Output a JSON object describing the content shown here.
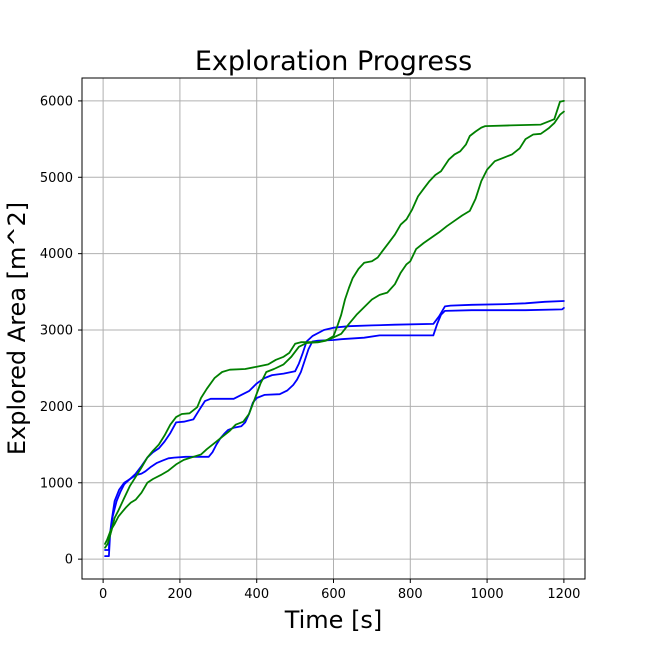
{
  "chart_data": {
    "type": "line",
    "title": "Exploration Progress",
    "xlabel": "Time [s]",
    "ylabel": "Explored Area [m^2]",
    "xlim": [
      -55,
      1255
    ],
    "ylim": [
      -260,
      6300
    ],
    "xticks": [
      0,
      200,
      400,
      600,
      800,
      1000,
      1200
    ],
    "yticks": [
      0,
      1000,
      2000,
      3000,
      4000,
      5000,
      6000
    ],
    "grid": true,
    "legend": "none",
    "series": [
      {
        "color": "#0000ff",
        "points": [
          [
            5,
            120
          ],
          [
            15,
            120
          ],
          [
            16,
            260
          ],
          [
            22,
            500
          ],
          [
            30,
            760
          ],
          [
            42,
            910
          ],
          [
            55,
            1000
          ],
          [
            70,
            1050
          ],
          [
            85,
            1100
          ],
          [
            100,
            1120
          ],
          [
            110,
            1150
          ],
          [
            125,
            1210
          ],
          [
            140,
            1260
          ],
          [
            155,
            1290
          ],
          [
            170,
            1320
          ],
          [
            185,
            1330
          ],
          [
            215,
            1340
          ],
          [
            260,
            1340
          ],
          [
            275,
            1340
          ],
          [
            285,
            1400
          ],
          [
            295,
            1500
          ],
          [
            305,
            1580
          ],
          [
            315,
            1640
          ],
          [
            325,
            1690
          ],
          [
            340,
            1720
          ],
          [
            360,
            1740
          ],
          [
            370,
            1790
          ],
          [
            380,
            1900
          ],
          [
            390,
            2050
          ],
          [
            400,
            2110
          ],
          [
            420,
            2150
          ],
          [
            460,
            2160
          ],
          [
            480,
            2210
          ],
          [
            495,
            2280
          ],
          [
            505,
            2350
          ],
          [
            515,
            2450
          ],
          [
            525,
            2600
          ],
          [
            535,
            2750
          ],
          [
            545,
            2850
          ],
          [
            560,
            2860
          ],
          [
            600,
            2870
          ],
          [
            620,
            2880
          ],
          [
            680,
            2900
          ],
          [
            720,
            2930
          ],
          [
            860,
            2930
          ],
          [
            870,
            3080
          ],
          [
            880,
            3200
          ],
          [
            890,
            3250
          ],
          [
            960,
            3260
          ],
          [
            1100,
            3260
          ],
          [
            1195,
            3270
          ],
          [
            1200,
            3290
          ]
        ]
      },
      {
        "color": "#0000ff",
        "points": [
          [
            5,
            40
          ],
          [
            15,
            40
          ],
          [
            18,
            300
          ],
          [
            25,
            560
          ],
          [
            35,
            760
          ],
          [
            45,
            880
          ],
          [
            55,
            980
          ],
          [
            70,
            1050
          ],
          [
            85,
            1120
          ],
          [
            100,
            1220
          ],
          [
            115,
            1330
          ],
          [
            130,
            1400
          ],
          [
            145,
            1450
          ],
          [
            160,
            1540
          ],
          [
            175,
            1650
          ],
          [
            190,
            1790
          ],
          [
            210,
            1800
          ],
          [
            235,
            1830
          ],
          [
            250,
            1950
          ],
          [
            265,
            2070
          ],
          [
            280,
            2100
          ],
          [
            340,
            2100
          ],
          [
            360,
            2150
          ],
          [
            380,
            2200
          ],
          [
            400,
            2300
          ],
          [
            420,
            2370
          ],
          [
            440,
            2410
          ],
          [
            470,
            2430
          ],
          [
            500,
            2460
          ],
          [
            510,
            2560
          ],
          [
            520,
            2700
          ],
          [
            530,
            2850
          ],
          [
            545,
            2920
          ],
          [
            575,
            3000
          ],
          [
            600,
            3030
          ],
          [
            640,
            3050
          ],
          [
            700,
            3060
          ],
          [
            760,
            3070
          ],
          [
            860,
            3080
          ],
          [
            875,
            3180
          ],
          [
            890,
            3310
          ],
          [
            905,
            3320
          ],
          [
            960,
            3330
          ],
          [
            1050,
            3340
          ],
          [
            1100,
            3350
          ],
          [
            1150,
            3370
          ],
          [
            1200,
            3380
          ]
        ]
      },
      {
        "color": "#008000",
        "points": [
          [
            5,
            200
          ],
          [
            10,
            250
          ],
          [
            20,
            380
          ],
          [
            30,
            460
          ],
          [
            40,
            560
          ],
          [
            50,
            620
          ],
          [
            60,
            680
          ],
          [
            72,
            740
          ],
          [
            85,
            780
          ],
          [
            100,
            870
          ],
          [
            115,
            1000
          ],
          [
            130,
            1050
          ],
          [
            150,
            1100
          ],
          [
            170,
            1160
          ],
          [
            190,
            1240
          ],
          [
            210,
            1300
          ],
          [
            235,
            1340
          ],
          [
            255,
            1370
          ],
          [
            270,
            1440
          ],
          [
            290,
            1520
          ],
          [
            310,
            1600
          ],
          [
            330,
            1680
          ],
          [
            345,
            1760
          ],
          [
            365,
            1800
          ],
          [
            380,
            1900
          ],
          [
            395,
            2100
          ],
          [
            410,
            2300
          ],
          [
            425,
            2450
          ],
          [
            445,
            2490
          ],
          [
            470,
            2550
          ],
          [
            490,
            2650
          ],
          [
            510,
            2780
          ],
          [
            530,
            2830
          ],
          [
            560,
            2840
          ],
          [
            590,
            2880
          ],
          [
            620,
            2950
          ],
          [
            640,
            3080
          ],
          [
            660,
            3200
          ],
          [
            680,
            3300
          ],
          [
            700,
            3400
          ],
          [
            720,
            3460
          ],
          [
            740,
            3490
          ],
          [
            760,
            3600
          ],
          [
            775,
            3750
          ],
          [
            790,
            3860
          ],
          [
            800,
            3900
          ],
          [
            815,
            4060
          ],
          [
            835,
            4140
          ],
          [
            855,
            4210
          ],
          [
            875,
            4280
          ],
          [
            895,
            4360
          ],
          [
            915,
            4430
          ],
          [
            935,
            4500
          ],
          [
            955,
            4560
          ],
          [
            970,
            4720
          ],
          [
            985,
            4950
          ],
          [
            1000,
            5100
          ],
          [
            1020,
            5210
          ],
          [
            1045,
            5260
          ],
          [
            1065,
            5300
          ],
          [
            1085,
            5380
          ],
          [
            1100,
            5500
          ],
          [
            1120,
            5560
          ],
          [
            1140,
            5570
          ],
          [
            1160,
            5640
          ],
          [
            1175,
            5710
          ],
          [
            1190,
            5820
          ],
          [
            1200,
            5860
          ]
        ]
      },
      {
        "color": "#008000",
        "points": [
          [
            5,
            150
          ],
          [
            12,
            200
          ],
          [
            22,
            380
          ],
          [
            30,
            540
          ],
          [
            40,
            640
          ],
          [
            55,
            800
          ],
          [
            70,
            960
          ],
          [
            85,
            1080
          ],
          [
            100,
            1200
          ],
          [
            115,
            1330
          ],
          [
            130,
            1420
          ],
          [
            145,
            1500
          ],
          [
            160,
            1620
          ],
          [
            175,
            1760
          ],
          [
            190,
            1860
          ],
          [
            205,
            1900
          ],
          [
            225,
            1910
          ],
          [
            245,
            1990
          ],
          [
            255,
            2110
          ],
          [
            270,
            2230
          ],
          [
            290,
            2370
          ],
          [
            310,
            2450
          ],
          [
            330,
            2480
          ],
          [
            370,
            2490
          ],
          [
            400,
            2520
          ],
          [
            430,
            2550
          ],
          [
            450,
            2610
          ],
          [
            470,
            2650
          ],
          [
            485,
            2700
          ],
          [
            500,
            2820
          ],
          [
            515,
            2840
          ],
          [
            560,
            2840
          ],
          [
            580,
            2860
          ],
          [
            600,
            2920
          ],
          [
            610,
            3050
          ],
          [
            620,
            3200
          ],
          [
            630,
            3400
          ],
          [
            640,
            3550
          ],
          [
            650,
            3680
          ],
          [
            665,
            3800
          ],
          [
            680,
            3880
          ],
          [
            700,
            3900
          ],
          [
            715,
            3950
          ],
          [
            730,
            4050
          ],
          [
            745,
            4150
          ],
          [
            760,
            4250
          ],
          [
            775,
            4380
          ],
          [
            790,
            4450
          ],
          [
            805,
            4580
          ],
          [
            820,
            4750
          ],
          [
            835,
            4850
          ],
          [
            850,
            4950
          ],
          [
            865,
            5030
          ],
          [
            880,
            5080
          ],
          [
            900,
            5230
          ],
          [
            915,
            5300
          ],
          [
            930,
            5340
          ],
          [
            945,
            5430
          ],
          [
            955,
            5540
          ],
          [
            970,
            5600
          ],
          [
            985,
            5650
          ],
          [
            995,
            5670
          ],
          [
            1060,
            5680
          ],
          [
            1140,
            5690
          ],
          [
            1175,
            5760
          ],
          [
            1190,
            5990
          ],
          [
            1200,
            6000
          ]
        ]
      }
    ]
  }
}
